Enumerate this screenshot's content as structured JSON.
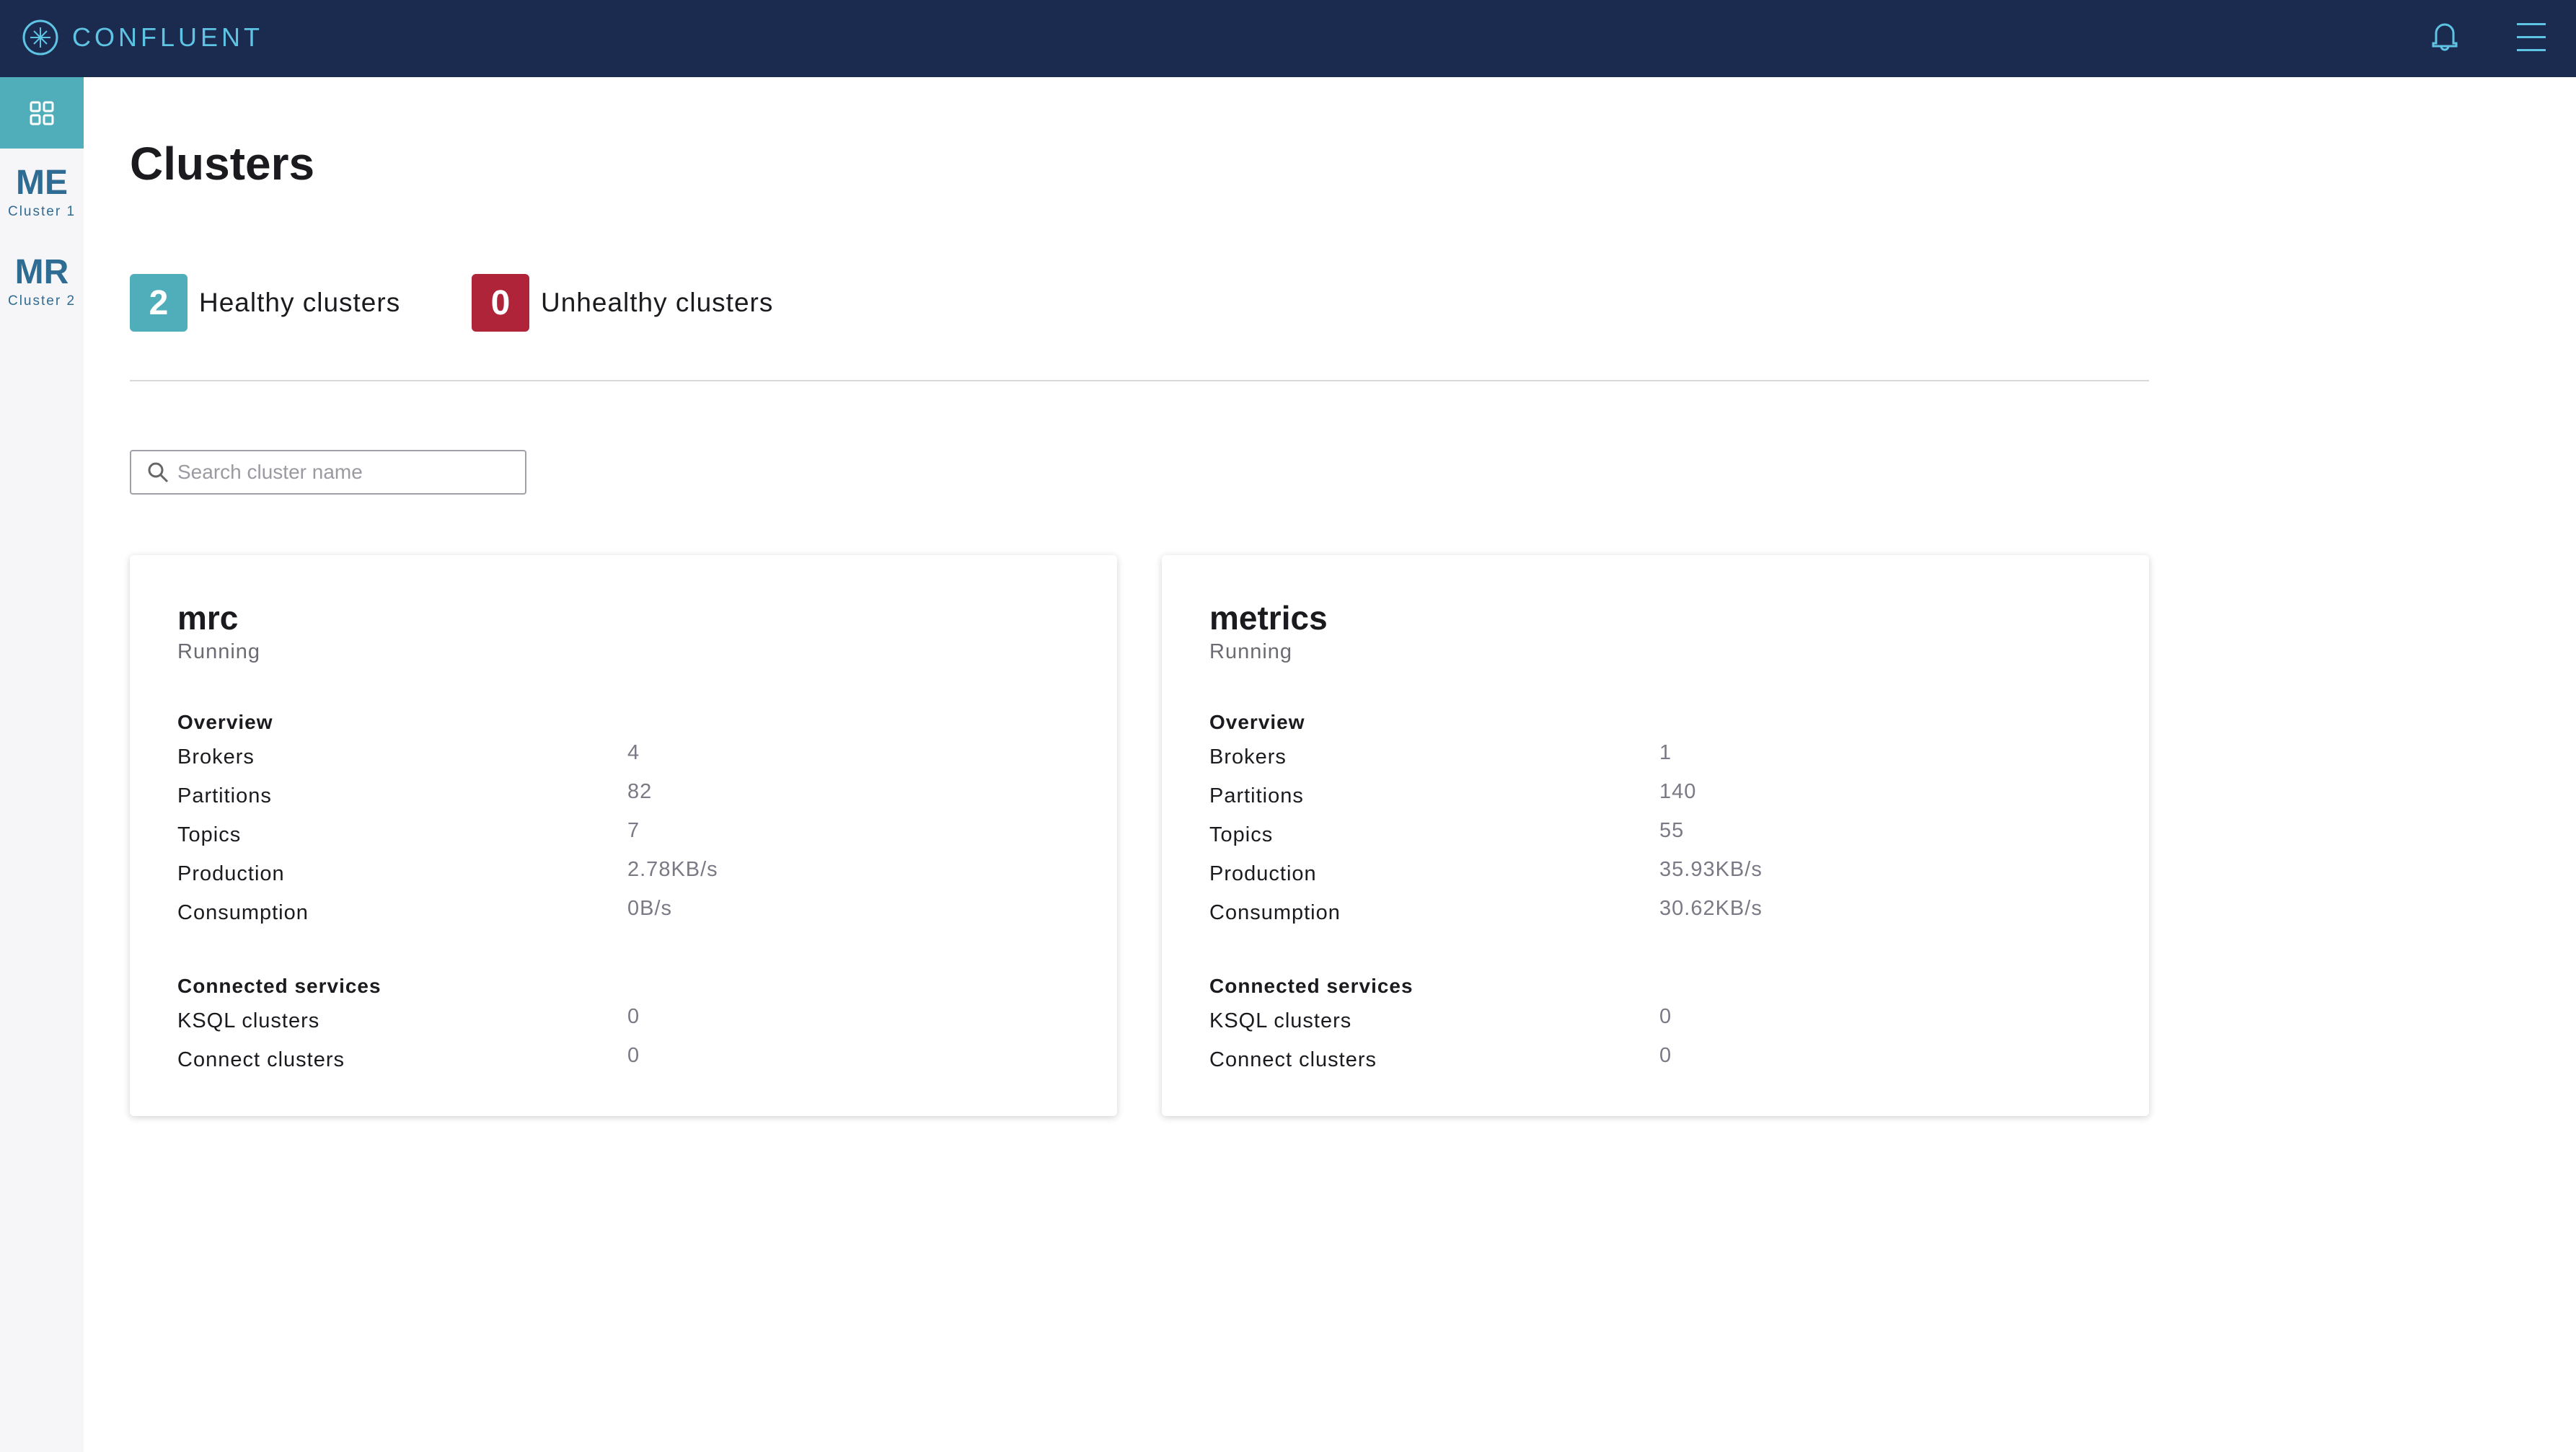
{
  "header": {
    "brand": "CONFLUENT",
    "icons": [
      "confluent-logo-icon",
      "bell-icon",
      "hamburger-menu-icon"
    ],
    "color": "#1b2b4f",
    "accent": "#5fc3e4"
  },
  "sidebar": {
    "home_icon": "grid-icon",
    "items": [
      {
        "abbr": "ME",
        "label": "Cluster 1"
      },
      {
        "abbr": "MR",
        "label": "Cluster 2"
      }
    ]
  },
  "page": {
    "title": "Clusters"
  },
  "summary": {
    "healthy": {
      "count": "2",
      "label": "Healthy clusters",
      "color": "#4faeba"
    },
    "unhealthy": {
      "count": "0",
      "label": "Unhealthy clusters",
      "color": "#b0243a"
    }
  },
  "search": {
    "placeholder": "Search cluster name",
    "value": ""
  },
  "labels": {
    "overview": "Overview",
    "brokers": "Brokers",
    "partitions": "Partitions",
    "topics": "Topics",
    "production": "Production",
    "consumption": "Consumption",
    "connected": "Connected services",
    "ksql": "KSQL clusters",
    "connect": "Connect clusters"
  },
  "clusters": [
    {
      "name": "mrc",
      "status": "Running",
      "brokers": "4",
      "partitions": "82",
      "topics": "7",
      "production": "2.78KB/s",
      "consumption": "0B/s",
      "ksql": "0",
      "connect": "0"
    },
    {
      "name": "metrics",
      "status": "Running",
      "brokers": "1",
      "partitions": "140",
      "topics": "55",
      "production": "35.93KB/s",
      "consumption": "30.62KB/s",
      "ksql": "0",
      "connect": "0"
    }
  ]
}
